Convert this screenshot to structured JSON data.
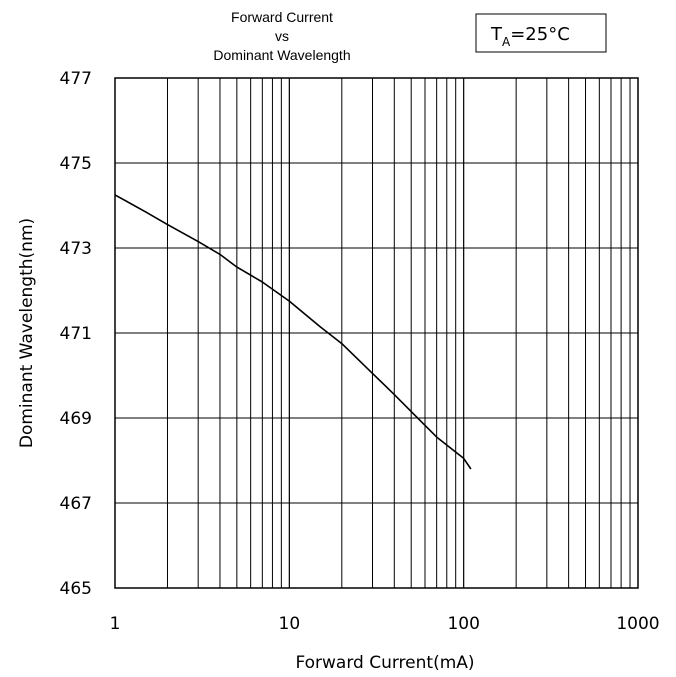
{
  "chart_data": {
    "type": "line",
    "title_lines": [
      "Forward Current",
      "vs",
      "Dominant Wavelength"
    ],
    "xlabel": "Forward Current(mA)",
    "ylabel": "Dominant Wavelength(nm)",
    "x_scale": "log",
    "xlim": [
      1,
      1000
    ],
    "ylim": [
      465,
      477
    ],
    "x_ticks": [
      1,
      10,
      100,
      1000
    ],
    "x_tick_labels": [
      "1",
      "10",
      "100",
      "1000"
    ],
    "y_ticks": [
      465,
      467,
      469,
      471,
      473,
      475,
      477
    ],
    "y_tick_labels": [
      "465",
      "467",
      "469",
      "471",
      "473",
      "475",
      "477"
    ],
    "grid": true,
    "condition": {
      "main": "T",
      "sub": "A",
      "rest": "=25°C"
    },
    "series": [
      {
        "x": [
          1,
          1.5,
          2,
          3,
          4,
          5,
          7,
          10,
          15,
          20,
          30,
          40,
          50,
          70,
          100,
          110
        ],
        "y": [
          474.25,
          473.85,
          473.55,
          473.15,
          472.85,
          472.55,
          472.2,
          471.75,
          471.15,
          470.75,
          470.05,
          469.55,
          469.15,
          468.55,
          468.05,
          467.8
        ]
      }
    ]
  }
}
